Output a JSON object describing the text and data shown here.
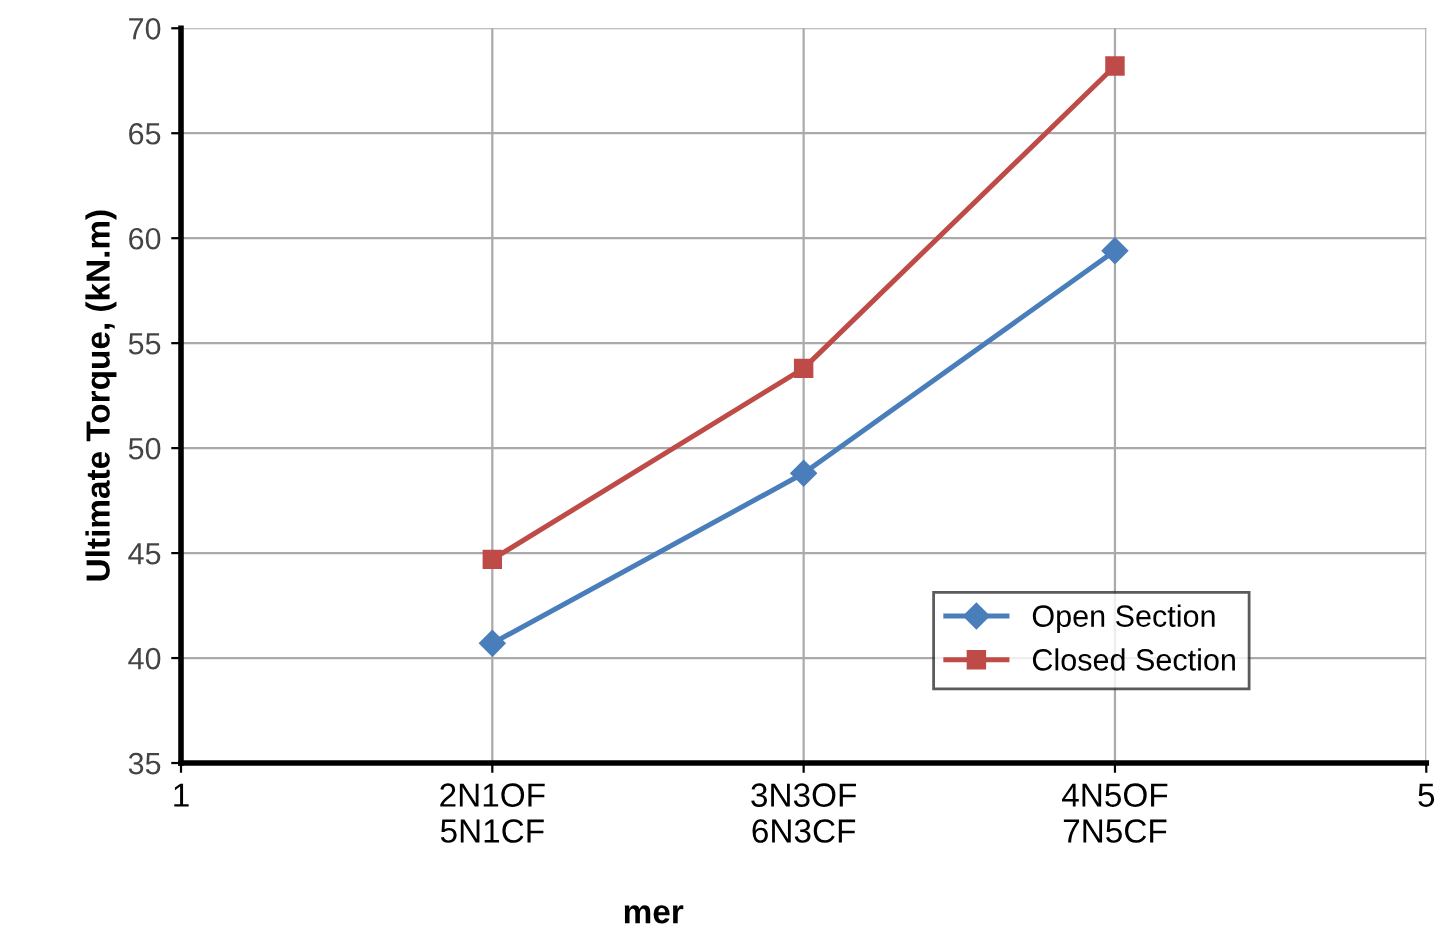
{
  "chart_data": {
    "type": "line",
    "ylabel": "Ultimate Torque, (kN.m)",
    "x": [
      2,
      3,
      4
    ],
    "series": [
      {
        "name": "Open Section",
        "color": "#4a7ebb",
        "marker": "diamond",
        "values": [
          40.7,
          48.8,
          59.4
        ]
      },
      {
        "name": "Closed Section",
        "color": "#be4b48",
        "marker": "square",
        "values": [
          44.7,
          53.8,
          68.2
        ]
      }
    ],
    "xlim": [
      1,
      5
    ],
    "xticks": [
      1,
      {
        "value": 2,
        "label": "2N1OF\n5N1CF"
      },
      {
        "value": 3,
        "label": "3N3OF\n6N3CF"
      },
      {
        "value": 4,
        "label": "4N5OF\n7N5CF"
      },
      5
    ],
    "ylim": [
      35,
      70
    ],
    "yticks": [
      35,
      40,
      45,
      50,
      55,
      60,
      65,
      70
    ],
    "annotations": [
      "mer"
    ],
    "grid": true,
    "legend": "bottom right",
    "line_style": "solid"
  }
}
